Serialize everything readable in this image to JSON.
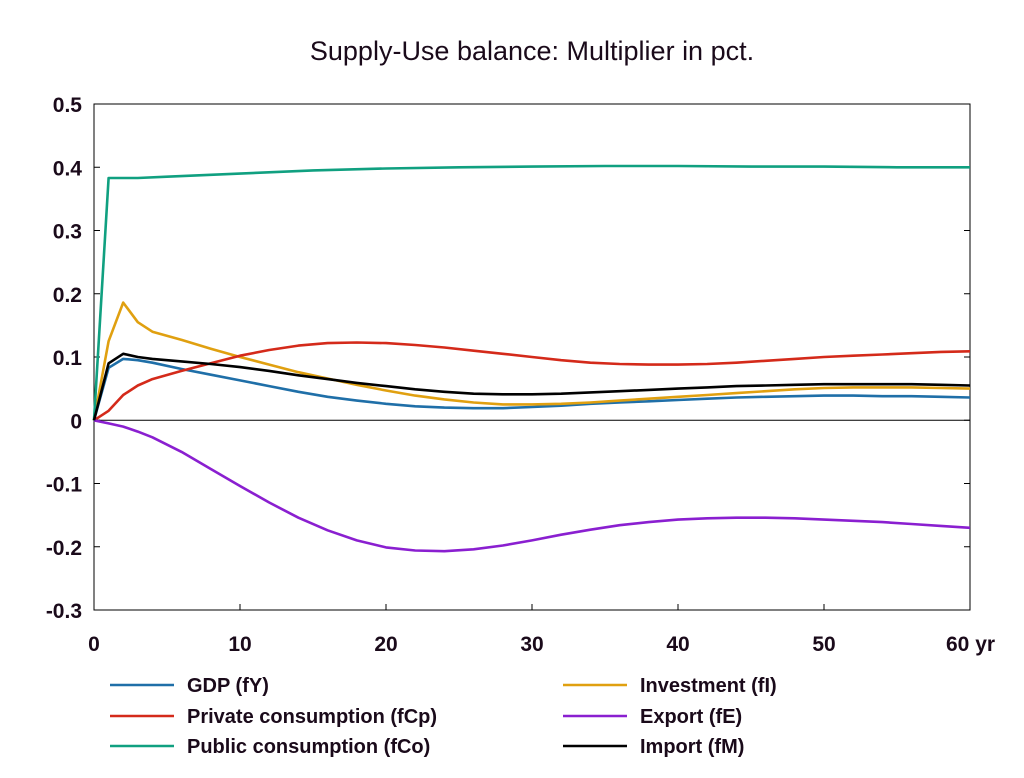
{
  "chart_data": {
    "type": "line",
    "title": "Supply-Use balance: Multiplier in pct.",
    "x_unit_label": "yr",
    "xlim": [
      0,
      60
    ],
    "ylim": [
      -0.3,
      0.5
    ],
    "x_ticks": [
      "0",
      "10",
      "20",
      "30",
      "40",
      "50",
      "60 yr"
    ],
    "y_ticks": [
      "0.5",
      "0.4",
      "0.3",
      "0.2",
      "0.1",
      "0",
      "-0.1",
      "-0.2",
      "-0.3"
    ],
    "legend_position": "bottom",
    "series": [
      {
        "name": "GDP (fY)",
        "color": "#1f6fa8",
        "x": [
          0,
          1,
          2,
          3,
          4,
          6,
          8,
          10,
          12,
          14,
          16,
          18,
          20,
          22,
          24,
          26,
          28,
          30,
          32,
          34,
          36,
          38,
          40,
          42,
          44,
          46,
          48,
          50,
          52,
          54,
          56,
          58,
          60
        ],
        "y": [
          0,
          0.083,
          0.097,
          0.095,
          0.091,
          0.081,
          0.072,
          0.063,
          0.054,
          0.045,
          0.037,
          0.031,
          0.026,
          0.022,
          0.02,
          0.019,
          0.019,
          0.021,
          0.023,
          0.026,
          0.028,
          0.03,
          0.032,
          0.034,
          0.036,
          0.037,
          0.038,
          0.039,
          0.039,
          0.038,
          0.038,
          0.037,
          0.036
        ]
      },
      {
        "name": "Investment (fI)",
        "color": "#e0a010",
        "x": [
          0,
          1,
          2,
          3,
          4,
          6,
          8,
          10,
          12,
          14,
          16,
          18,
          20,
          22,
          24,
          26,
          28,
          30,
          32,
          34,
          36,
          38,
          40,
          42,
          44,
          46,
          48,
          50,
          52,
          54,
          56,
          58,
          60
        ],
        "y": [
          0,
          0.125,
          0.186,
          0.155,
          0.14,
          0.127,
          0.113,
          0.1,
          0.088,
          0.076,
          0.066,
          0.056,
          0.047,
          0.039,
          0.033,
          0.028,
          0.025,
          0.025,
          0.026,
          0.028,
          0.031,
          0.034,
          0.037,
          0.04,
          0.043,
          0.046,
          0.049,
          0.051,
          0.052,
          0.052,
          0.052,
          0.051,
          0.05
        ]
      },
      {
        "name": "Private consumption (fCp)",
        "color": "#d42a1a",
        "x": [
          0,
          1,
          2,
          3,
          4,
          6,
          8,
          10,
          12,
          14,
          16,
          18,
          20,
          22,
          24,
          26,
          28,
          30,
          32,
          34,
          36,
          38,
          40,
          42,
          44,
          46,
          48,
          50,
          52,
          54,
          56,
          58,
          60
        ],
        "y": [
          0,
          0.015,
          0.04,
          0.055,
          0.065,
          0.078,
          0.09,
          0.102,
          0.111,
          0.118,
          0.122,
          0.123,
          0.122,
          0.119,
          0.115,
          0.11,
          0.105,
          0.1,
          0.095,
          0.091,
          0.089,
          0.088,
          0.088,
          0.089,
          0.091,
          0.094,
          0.097,
          0.1,
          0.102,
          0.104,
          0.106,
          0.108,
          0.109
        ]
      },
      {
        "name": "Export (fE)",
        "color": "#8a1fd0",
        "x": [
          0,
          1,
          2,
          3,
          4,
          6,
          8,
          10,
          12,
          14,
          16,
          18,
          20,
          22,
          24,
          26,
          28,
          30,
          32,
          34,
          36,
          38,
          40,
          42,
          44,
          46,
          48,
          50,
          52,
          54,
          56,
          58,
          60
        ],
        "y": [
          0,
          -0.005,
          -0.01,
          -0.018,
          -0.027,
          -0.05,
          -0.077,
          -0.104,
          -0.13,
          -0.154,
          -0.174,
          -0.19,
          -0.201,
          -0.206,
          -0.207,
          -0.204,
          -0.198,
          -0.19,
          -0.181,
          -0.173,
          -0.166,
          -0.161,
          -0.157,
          -0.155,
          -0.154,
          -0.154,
          -0.155,
          -0.157,
          -0.159,
          -0.161,
          -0.164,
          -0.167,
          -0.17
        ]
      },
      {
        "name": "Public consumption (fCo)",
        "color": "#10a080",
        "x": [
          0,
          1,
          3,
          5,
          10,
          15,
          20,
          25,
          30,
          35,
          40,
          45,
          50,
          55,
          60
        ],
        "y": [
          0,
          0.383,
          0.383,
          0.385,
          0.39,
          0.395,
          0.398,
          0.4,
          0.401,
          0.402,
          0.402,
          0.401,
          0.401,
          0.4,
          0.4
        ]
      },
      {
        "name": "Import (fM)",
        "color": "#000000",
        "x": [
          0,
          1,
          2,
          3,
          4,
          6,
          8,
          10,
          12,
          14,
          16,
          18,
          20,
          22,
          24,
          26,
          28,
          30,
          32,
          34,
          36,
          38,
          40,
          42,
          44,
          46,
          48,
          50,
          52,
          54,
          56,
          58,
          60
        ],
        "y": [
          0,
          0.09,
          0.105,
          0.1,
          0.097,
          0.093,
          0.089,
          0.084,
          0.078,
          0.071,
          0.065,
          0.059,
          0.054,
          0.049,
          0.045,
          0.042,
          0.041,
          0.041,
          0.042,
          0.044,
          0.046,
          0.048,
          0.05,
          0.052,
          0.054,
          0.055,
          0.056,
          0.057,
          0.057,
          0.057,
          0.057,
          0.056,
          0.055
        ]
      }
    ]
  }
}
